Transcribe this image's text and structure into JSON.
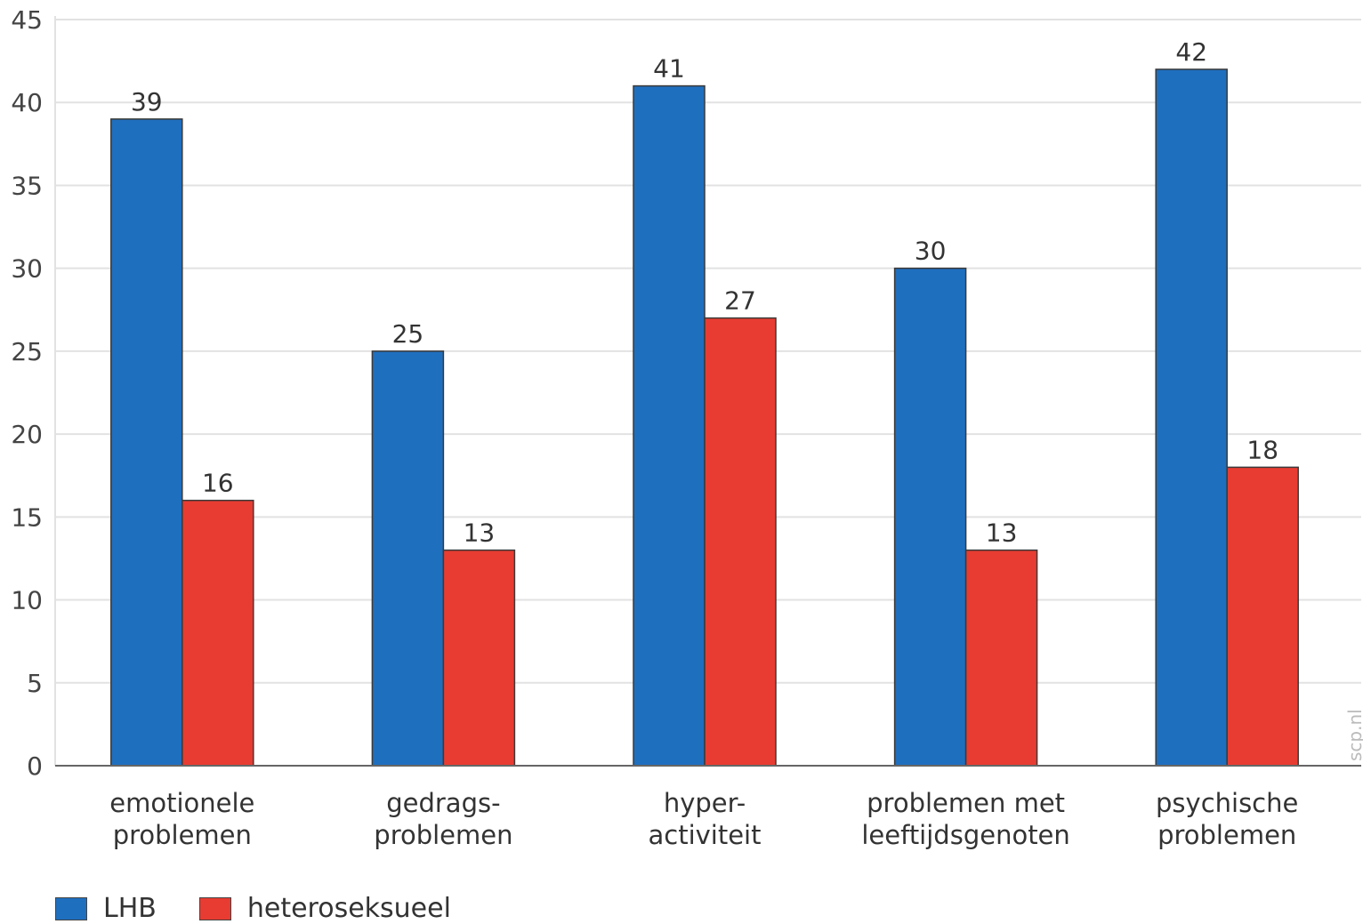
{
  "chart_data": {
    "type": "bar",
    "categories": [
      [
        "emotionele",
        "problemen"
      ],
      [
        "gedrags-",
        "problemen"
      ],
      [
        "hyper-",
        "activiteit"
      ],
      [
        "problemen met",
        "leeftijdsgenoten"
      ],
      [
        "psychische",
        "problemen"
      ]
    ],
    "series": [
      {
        "name": "LHB",
        "color": "#1f6fbf",
        "values": [
          39,
          25,
          41,
          30,
          42
        ]
      },
      {
        "name": "heteroseksueel",
        "color": "#e83c32",
        "values": [
          16,
          13,
          27,
          13,
          18
        ]
      }
    ],
    "ylim": [
      0,
      45
    ],
    "yticks": [
      0,
      5,
      10,
      15,
      20,
      25,
      30,
      35,
      40,
      45
    ],
    "grid": true,
    "legend_position": "bottom-left",
    "watermark": "scp.nl"
  }
}
